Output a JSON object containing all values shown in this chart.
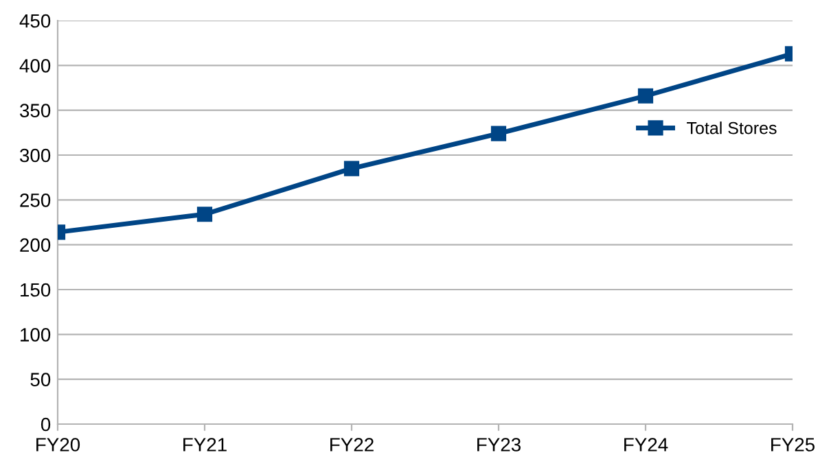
{
  "chart_data": {
    "type": "line",
    "categories": [
      "FY20",
      "FY21",
      "FY22",
      "FY23",
      "FY24",
      "FY25"
    ],
    "series": [
      {
        "name": "Total Stores",
        "color": "#004586",
        "values": [
          214,
          234,
          285,
          324,
          366,
          413
        ]
      }
    ],
    "ylim": [
      0,
      450
    ],
    "yticks": [
      0,
      50,
      100,
      150,
      200,
      250,
      300,
      350,
      400,
      450
    ],
    "grid": "y",
    "legend": "right",
    "marker": "square",
    "line_style": "solid"
  }
}
